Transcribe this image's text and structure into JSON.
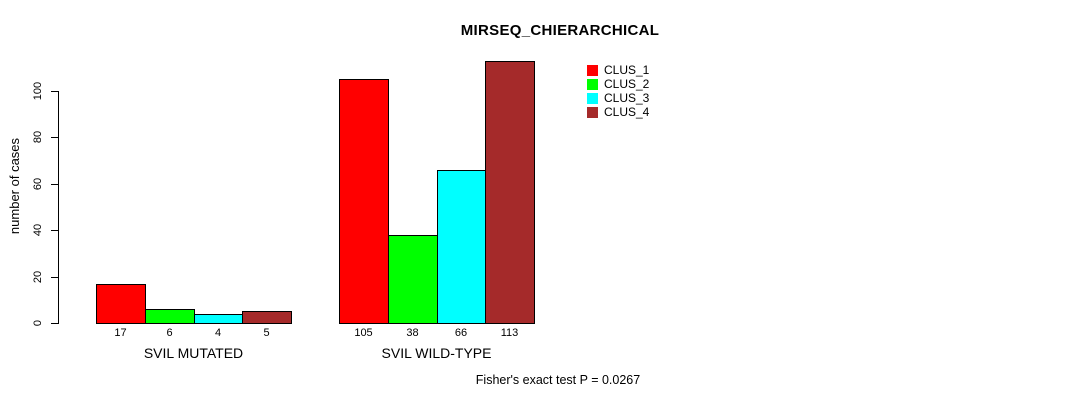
{
  "chart_data": {
    "type": "bar",
    "title": "MIRSEQ_CHIERARCHICAL",
    "xlabel": "",
    "ylabel": "number of cases",
    "categories": [
      "SVIL MUTATED",
      "SVIL WILD-TYPE"
    ],
    "series": [
      {
        "name": "CLUS_1",
        "color": "#ff0000",
        "values": [
          17,
          105
        ]
      },
      {
        "name": "CLUS_2",
        "color": "#00ff00",
        "values": [
          6,
          38
        ]
      },
      {
        "name": "CLUS_3",
        "color": "#00ffff",
        "values": [
          4,
          66
        ]
      },
      {
        "name": "CLUS_4",
        "color": "#a52a2a",
        "values": [
          5,
          113
        ]
      }
    ],
    "bar_value_labels": [
      [
        17,
        6,
        4,
        5
      ],
      [
        105,
        38,
        66,
        113
      ]
    ],
    "yticks": [
      0,
      20,
      40,
      60,
      80,
      100
    ],
    "ylim": [
      0,
      117
    ],
    "grid": false,
    "legend_position": "top-right",
    "annotation": "Fisher's exact test P = 0.0267"
  }
}
